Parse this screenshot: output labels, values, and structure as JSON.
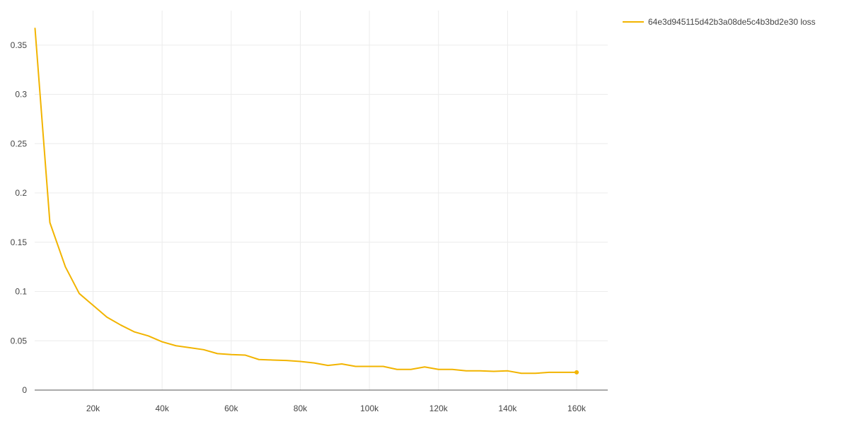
{
  "chart_data": {
    "type": "line",
    "x_ticks": [
      20000,
      40000,
      60000,
      80000,
      100000,
      120000,
      140000,
      160000
    ],
    "x_tick_labels": [
      "20k",
      "40k",
      "60k",
      "80k",
      "100k",
      "120k",
      "140k",
      "160k"
    ],
    "y_ticks": [
      0,
      0.05,
      0.1,
      0.15,
      0.2,
      0.25,
      0.3,
      0.35
    ],
    "y_tick_labels": [
      "0",
      "0.05",
      "0.1",
      "0.15",
      "0.2",
      "0.25",
      "0.3",
      "0.35"
    ],
    "xlim": [
      3100,
      169000
    ],
    "ylim": [
      0,
      0.385
    ],
    "grid": true,
    "legend_position": "top-right",
    "series": [
      {
        "name": "64e3d945115d42b3a08de5c4b3bd2e30 loss",
        "color": "#F2B400",
        "x": [
          3200,
          7500,
          12000,
          16000,
          20000,
          24000,
          28000,
          32000,
          36000,
          40000,
          44000,
          48000,
          52000,
          56000,
          60000,
          64000,
          68000,
          72000,
          76000,
          80000,
          84000,
          88000,
          92000,
          96000,
          100000,
          104000,
          108000,
          112000,
          116000,
          120000,
          124000,
          128000,
          132000,
          136000,
          140000,
          144000,
          148000,
          152000,
          156000,
          160000
        ],
        "y": [
          0.367,
          0.17,
          0.125,
          0.098,
          0.086,
          0.074,
          0.066,
          0.059,
          0.055,
          0.049,
          0.045,
          0.043,
          0.041,
          0.037,
          0.036,
          0.0355,
          0.031,
          0.0305,
          0.03,
          0.029,
          0.0275,
          0.025,
          0.0265,
          0.024,
          0.024,
          0.024,
          0.021,
          0.021,
          0.0235,
          0.021,
          0.021,
          0.0195,
          0.0195,
          0.019,
          0.0195,
          0.017,
          0.017,
          0.018,
          0.018,
          0.018
        ]
      }
    ]
  }
}
